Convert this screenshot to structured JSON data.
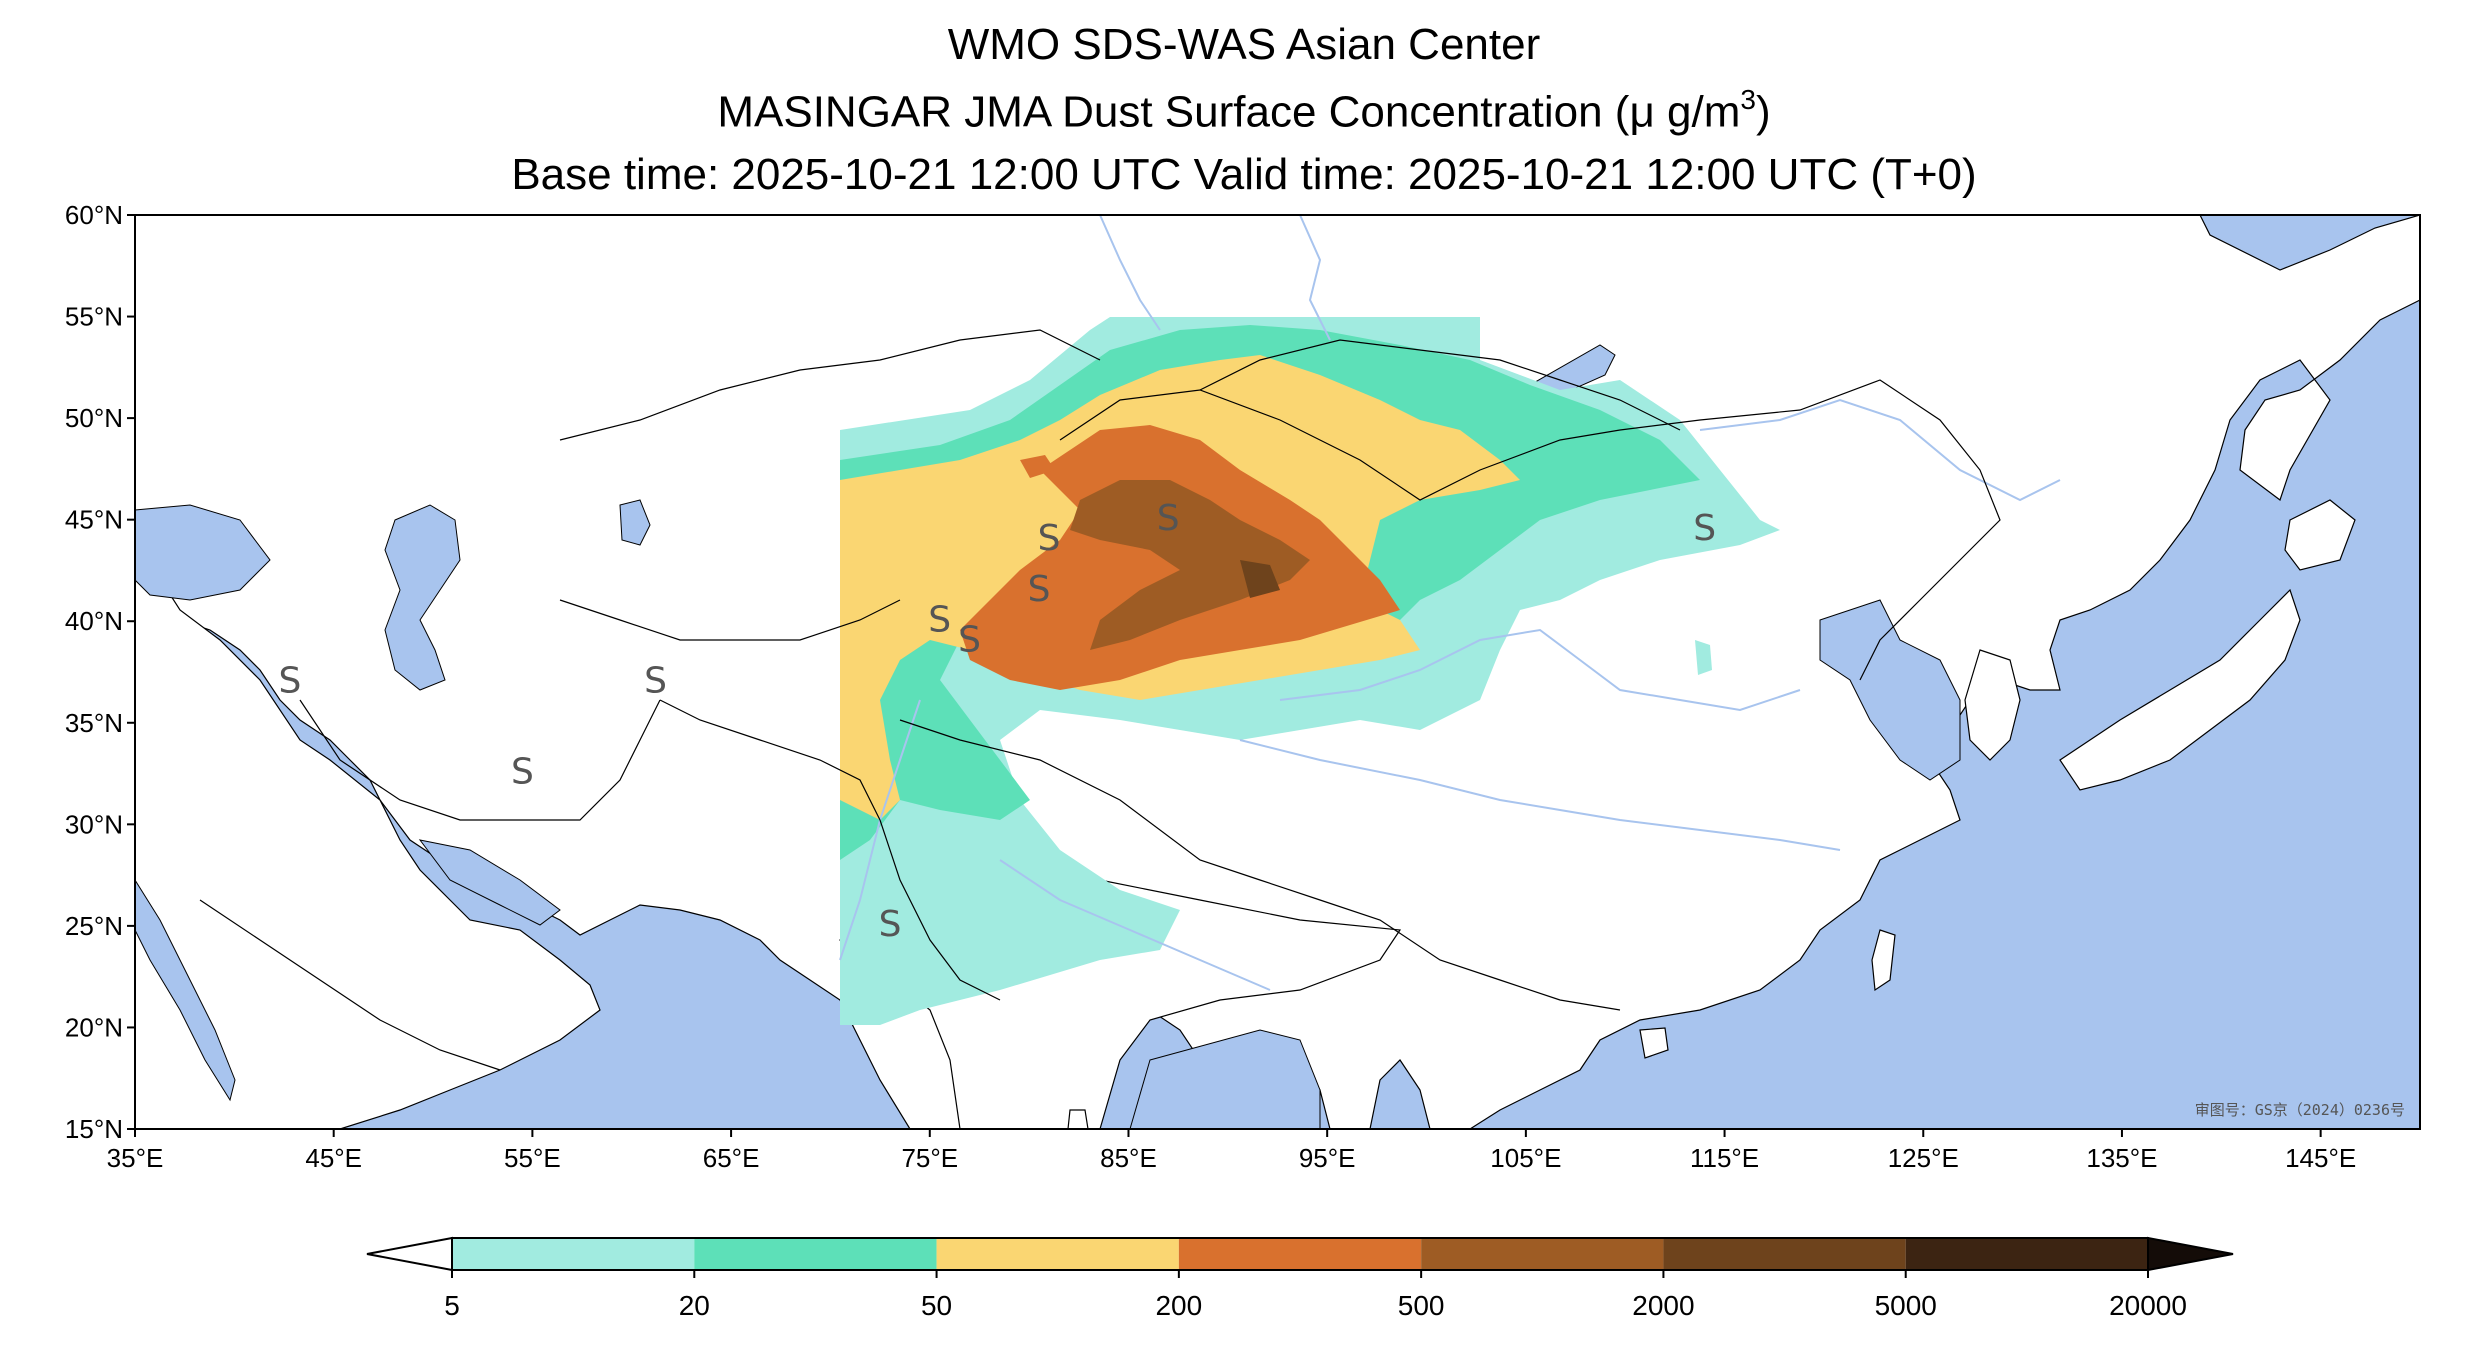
{
  "title": {
    "line1": "WMO SDS-WAS Asian Center",
    "line2_main": "MASINGAR JMA Dust Surface Concentration (",
    "line2_unit": "μ g/m",
    "line2_sup": "3",
    "line2_close": ")",
    "line3": "Base time: 2025-10-21 12:00 UTC Valid time: 2025-10-21 12:00 UTC (T+0)"
  },
  "axes": {
    "x_ticks": [
      "35°E",
      "45°E",
      "55°E",
      "65°E",
      "75°E",
      "85°E",
      "95°E",
      "105°E",
      "115°E",
      "125°E",
      "135°E",
      "145°E"
    ],
    "y_ticks": [
      "60°N",
      "55°N",
      "50°N",
      "45°N",
      "40°N",
      "35°N",
      "30°N",
      "25°N",
      "20°N",
      "15°N"
    ],
    "lon_range": [
      35,
      150
    ],
    "lat_range": [
      15,
      60
    ]
  },
  "colorbar": {
    "levels": [
      "5",
      "20",
      "50",
      "200",
      "500",
      "2000",
      "5000",
      "20000"
    ],
    "colors": [
      "#a1ebe0",
      "#5de0b8",
      "#fad672",
      "#d9712e",
      "#9e5c24",
      "#6e431c",
      "#3c2412",
      "#140c08"
    ],
    "extend": "both"
  },
  "map_colors": {
    "ocean": "#a8c4ee",
    "land": "#ffffff",
    "river": "#a8c4ee",
    "border": "#000000"
  },
  "markers": {
    "symbol": "S",
    "positions": [
      [
        42.8,
        36.5
      ],
      [
        61.2,
        36.5
      ],
      [
        54.5,
        32
      ],
      [
        81,
        43.5
      ],
      [
        80.5,
        41
      ],
      [
        75.5,
        39.5
      ],
      [
        77,
        38.5
      ],
      [
        87,
        44.5
      ],
      [
        114,
        44
      ],
      [
        73,
        24.5
      ]
    ]
  },
  "note": "审图号：GS京（2024）0236号"
}
